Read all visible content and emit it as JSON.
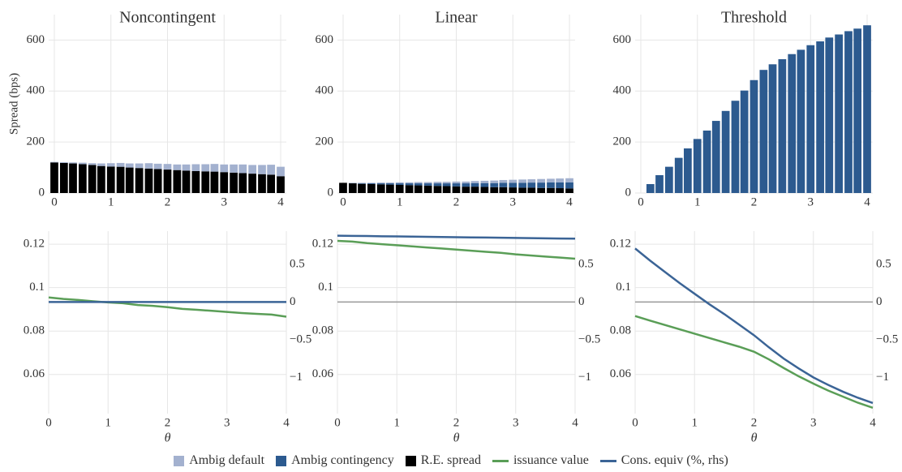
{
  "chart_data": [
    {
      "type": "stacked_bar",
      "title": "Noncontingent",
      "ylabel": "Spread (bps)",
      "x": [
        0,
        0.17,
        0.33,
        0.5,
        0.67,
        0.83,
        1,
        1.17,
        1.33,
        1.5,
        1.67,
        1.83,
        2,
        2.17,
        2.33,
        2.5,
        2.67,
        2.83,
        3,
        3.17,
        3.33,
        3.5,
        3.67,
        3.83,
        4
      ],
      "series": [
        {
          "name": "Ambig default",
          "color": "#a3b1cf",
          "values": [
            2,
            3,
            4,
            6,
            7,
            10,
            13,
            15,
            16,
            18,
            21,
            21,
            22,
            22,
            24,
            27,
            28,
            30,
            30,
            32,
            34,
            34,
            36,
            39,
            37
          ]
        },
        {
          "name": "Ambig contingency",
          "color": "#2c5a8f",
          "values": [
            0,
            0,
            0,
            0,
            0,
            0,
            0,
            0,
            0,
            0,
            0,
            0,
            0,
            0,
            0,
            0,
            0,
            0,
            0,
            0,
            0,
            0,
            0,
            0,
            0
          ]
        },
        {
          "name": "R.E. spread",
          "color": "#000000",
          "values": [
            120,
            118,
            116,
            113,
            110,
            106,
            104,
            103,
            100,
            98,
            96,
            94,
            92,
            90,
            88,
            86,
            85,
            84,
            82,
            80,
            78,
            76,
            74,
            72,
            66
          ]
        }
      ],
      "xlim": [
        -0.1,
        4.1
      ],
      "ylim": [
        0,
        700
      ],
      "xticks": [
        0,
        1,
        2,
        3,
        4
      ],
      "yticks": [
        0,
        200,
        400,
        600
      ],
      "grid": true
    },
    {
      "type": "stacked_bar",
      "title": "Linear",
      "x": [
        0,
        0.17,
        0.33,
        0.5,
        0.67,
        0.83,
        1,
        1.17,
        1.33,
        1.5,
        1.67,
        1.83,
        2,
        2.17,
        2.33,
        2.5,
        2.67,
        2.83,
        3,
        3.17,
        3.33,
        3.5,
        3.67,
        3.83,
        4
      ],
      "series": [
        {
          "name": "Ambig default",
          "color": "#a3b1cf",
          "values": [
            0,
            1,
            2,
            2,
            3,
            3,
            4,
            4,
            5,
            5,
            6,
            6,
            7,
            7,
            8,
            9,
            10,
            11,
            12,
            13,
            13,
            14,
            14,
            15,
            16
          ]
        },
        {
          "name": "Ambig contingency",
          "color": "#2c5a8f",
          "values": [
            0,
            1,
            2,
            3,
            4,
            5,
            6,
            7,
            8,
            9,
            10,
            11,
            12,
            13,
            14,
            15,
            16,
            17,
            18,
            19,
            20,
            21,
            22,
            23,
            24
          ]
        },
        {
          "name": "R.E. spread",
          "color": "#000000",
          "values": [
            40,
            38,
            36,
            35,
            34,
            33,
            32,
            31,
            30,
            29,
            28,
            27,
            26,
            25,
            25,
            24,
            23,
            23,
            22,
            21,
            21,
            20,
            20,
            19,
            18
          ]
        }
      ],
      "xlim": [
        -0.1,
        4.1
      ],
      "ylim": [
        0,
        700
      ],
      "xticks": [
        0,
        1,
        2,
        3,
        4
      ],
      "yticks": [
        0,
        200,
        400,
        600
      ],
      "grid": true
    },
    {
      "type": "stacked_bar",
      "title": "Threshold",
      "x": [
        0,
        0.17,
        0.33,
        0.5,
        0.67,
        0.83,
        1,
        1.17,
        1.33,
        1.5,
        1.67,
        1.83,
        2,
        2.17,
        2.33,
        2.5,
        2.67,
        2.83,
        3,
        3.17,
        3.33,
        3.5,
        3.67,
        3.83,
        4
      ],
      "series": [
        {
          "name": "Ambig default",
          "color": "#a3b1cf",
          "values": [
            0,
            0,
            0,
            0,
            0,
            0,
            0,
            0,
            0,
            0,
            0,
            0,
            0,
            0,
            0,
            0,
            0,
            0,
            0,
            0,
            0,
            0,
            0,
            0,
            0
          ]
        },
        {
          "name": "Ambig contingency",
          "color": "#2c5a8f",
          "values": [
            0,
            35,
            70,
            103,
            138,
            175,
            212,
            245,
            283,
            322,
            362,
            402,
            443,
            483,
            505,
            525,
            545,
            562,
            580,
            595,
            610,
            622,
            635,
            645,
            658
          ]
        },
        {
          "name": "R.E. spread",
          "color": "#000000",
          "values": [
            0,
            0,
            0,
            0,
            0,
            0,
            0,
            0,
            0,
            0,
            0,
            0,
            0,
            0,
            0,
            0,
            0,
            0,
            0,
            0,
            0,
            0,
            0,
            0,
            0
          ]
        }
      ],
      "xlim": [
        -0.1,
        4.1
      ],
      "ylim": [
        0,
        700
      ],
      "xticks": [
        0,
        1,
        2,
        3,
        4
      ],
      "yticks": [
        0,
        200,
        400,
        600
      ],
      "grid": true
    },
    {
      "type": "line",
      "xlabel": "θ",
      "x": [
        0,
        0.25,
        0.5,
        0.75,
        1,
        1.25,
        1.5,
        1.75,
        2,
        2.25,
        2.5,
        2.75,
        3,
        3.25,
        3.5,
        3.75,
        4
      ],
      "series": [
        {
          "name": "issuance value",
          "color": "#5a9e57",
          "values": [
            0.0955,
            0.0948,
            0.0943,
            0.0937,
            0.0932,
            0.0928,
            0.092,
            0.0916,
            0.091,
            0.0902,
            0.0898,
            0.0893,
            0.0888,
            0.0883,
            0.0879,
            0.0876,
            0.0866
          ]
        },
        {
          "name": "Cons. equiv (%, rhs)",
          "color": "#3b6496",
          "axis": "y2",
          "values": [
            0,
            0,
            0,
            0,
            0,
            0,
            0,
            0,
            0,
            0,
            0,
            0,
            0,
            0,
            0,
            0,
            0
          ]
        }
      ],
      "xlim": [
        0,
        4
      ],
      "ylim": [
        0.042,
        0.126
      ],
      "y2lim": [
        -1.48,
        0.94
      ],
      "xticks": [
        0,
        1,
        2,
        3,
        4
      ],
      "yticks": [
        0.06,
        0.08,
        0.1,
        0.12
      ],
      "y2ticks": [
        {
          "value": -1,
          "label": "−1"
        },
        {
          "value": -0.5,
          "label": "−0.5"
        },
        0,
        0.5
      ],
      "hline_y2": 0,
      "grid": true
    },
    {
      "type": "line",
      "xlabel": "θ",
      "x": [
        0,
        0.25,
        0.5,
        0.75,
        1,
        1.25,
        1.5,
        1.75,
        2,
        2.25,
        2.5,
        2.75,
        3,
        3.25,
        3.5,
        3.75,
        4
      ],
      "series": [
        {
          "name": "issuance value",
          "color": "#5a9e57",
          "values": [
            0.1215,
            0.1212,
            0.1205,
            0.12,
            0.1195,
            0.119,
            0.1185,
            0.118,
            0.1175,
            0.117,
            0.1165,
            0.116,
            0.1153,
            0.1148,
            0.1143,
            0.1138,
            0.1133
          ]
        },
        {
          "name": "Cons. equiv (%, rhs)",
          "color": "#3b6496",
          "axis": "y2",
          "values": [
            0.88,
            0.877,
            0.875,
            0.872,
            0.87,
            0.867,
            0.865,
            0.862,
            0.86,
            0.857,
            0.855,
            0.852,
            0.85,
            0.847,
            0.845,
            0.842,
            0.84
          ]
        }
      ],
      "xlim": [
        0,
        4
      ],
      "ylim": [
        0.042,
        0.126
      ],
      "y2lim": [
        -1.48,
        0.94
      ],
      "xticks": [
        0,
        1,
        2,
        3,
        4
      ],
      "yticks": [
        0.06,
        0.08,
        0.1,
        0.12
      ],
      "y2ticks": [
        {
          "value": -1,
          "label": "−1"
        },
        {
          "value": -0.5,
          "label": "−0.5"
        },
        0,
        0.5
      ],
      "hline_y2": 0,
      "grid": true
    },
    {
      "type": "line",
      "xlabel": "θ",
      "x": [
        0,
        0.25,
        0.5,
        0.75,
        1,
        1.25,
        1.5,
        1.75,
        2,
        2.25,
        2.5,
        2.75,
        3,
        3.25,
        3.5,
        3.75,
        4
      ],
      "series": [
        {
          "name": "issuance value",
          "color": "#5a9e57",
          "values": [
            0.0869,
            0.0848,
            0.0828,
            0.0808,
            0.0788,
            0.0768,
            0.0748,
            0.0728,
            0.0705,
            0.067,
            0.063,
            0.0592,
            0.0558,
            0.0526,
            0.0498,
            0.047,
            0.0447
          ]
        },
        {
          "name": "Cons. equiv (%, rhs)",
          "color": "#3b6496",
          "axis": "y2",
          "values": [
            0.71,
            0.55,
            0.4,
            0.25,
            0.11,
            -0.03,
            -0.16,
            -0.3,
            -0.44,
            -0.6,
            -0.75,
            -0.88,
            -1.0,
            -1.1,
            -1.19,
            -1.27,
            -1.34
          ]
        }
      ],
      "xlim": [
        0,
        4
      ],
      "ylim": [
        0.042,
        0.126
      ],
      "y2lim": [
        -1.48,
        0.94
      ],
      "xticks": [
        0,
        1,
        2,
        3,
        4
      ],
      "yticks": [
        0.06,
        0.08,
        0.1,
        0.12
      ],
      "y2ticks": [
        {
          "value": -1,
          "label": "−1"
        },
        {
          "value": -0.5,
          "label": "−0.5"
        },
        0,
        0.5
      ],
      "hline_y2": 0,
      "grid": true
    }
  ]
}
